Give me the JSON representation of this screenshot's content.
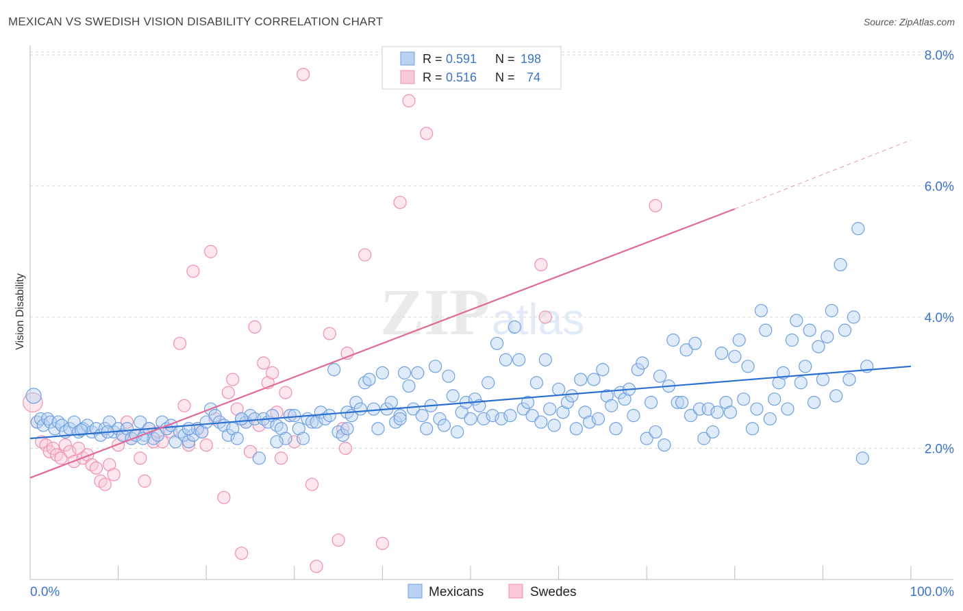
{
  "header": {
    "title": "MEXICAN VS SWEDISH VISION DISABILITY CORRELATION CHART",
    "source": "Source: ZipAtlas.com"
  },
  "legend_box": {
    "rows": [
      {
        "r_label": "R =",
        "r_value": "0.591",
        "n_label": "N =",
        "n_value": "198"
      },
      {
        "r_label": "R =",
        "r_value": "0.516",
        "n_label": "N =",
        "n_value": "74"
      }
    ]
  },
  "watermark": {
    "zip": "ZIP",
    "atlas": "atlas"
  },
  "colors": {
    "mexicans": "#6fa0e0",
    "mexicans_fill": "#b9d2f2",
    "mexicans_line": "#2b6fd0",
    "swedes": "#ef8fae",
    "swedes_fill": "#f9c9d8",
    "swedes_line": "#e06a94",
    "value_text": "#3a73c8",
    "axis_label": "#3a73c8"
  },
  "chart_data": {
    "type": "scatter",
    "title": "MEXICAN VS SWEDISH VISION DISABILITY CORRELATION CHART",
    "xlabel": "",
    "ylabel": "Vision Disability",
    "xlim": [
      0,
      100
    ],
    "ylim": [
      0,
      8.4
    ],
    "x_tick_labels": [
      "0.0%",
      "100.0%"
    ],
    "y_ticks": [
      2,
      4,
      6,
      8
    ],
    "y_tick_labels": [
      "2.0%",
      "4.0%",
      "6.0%",
      "8.0%"
    ],
    "grid": true,
    "legend_position": "bottom-center",
    "series": [
      {
        "name": "Mexicans",
        "r": 0.591,
        "n": 198,
        "trend": {
          "x0": 0,
          "y0": 2.15,
          "x1": 100,
          "y1": 3.25
        },
        "points": [
          [
            0.4,
            2.8
          ],
          [
            0.8,
            2.4
          ],
          [
            1.2,
            2.45
          ],
          [
            1.5,
            2.35
          ],
          [
            2.0,
            2.45
          ],
          [
            2.3,
            2.4
          ],
          [
            2.8,
            2.3
          ],
          [
            3.2,
            2.4
          ],
          [
            3.6,
            2.35
          ],
          [
            4.0,
            2.25
          ],
          [
            4.5,
            2.3
          ],
          [
            5.0,
            2.4
          ],
          [
            5.5,
            2.25
          ],
          [
            6.0,
            2.3
          ],
          [
            6.5,
            2.35
          ],
          [
            7.0,
            2.25
          ],
          [
            7.5,
            2.3
          ],
          [
            8.0,
            2.2
          ],
          [
            8.5,
            2.3
          ],
          [
            9.0,
            2.4
          ],
          [
            9.5,
            2.25
          ],
          [
            10.0,
            2.3
          ],
          [
            10.5,
            2.2
          ],
          [
            11.0,
            2.3
          ],
          [
            11.5,
            2.15
          ],
          [
            12.0,
            2.2
          ],
          [
            12.5,
            2.4
          ],
          [
            13.0,
            2.2
          ],
          [
            13.5,
            2.3
          ],
          [
            14.0,
            2.15
          ],
          [
            14.5,
            2.2
          ],
          [
            15.0,
            2.4
          ],
          [
            15.5,
            2.3
          ],
          [
            16.0,
            2.35
          ],
          [
            16.5,
            2.1
          ],
          [
            17.0,
            2.25
          ],
          [
            17.5,
            2.2
          ],
          [
            18.0,
            2.1
          ],
          [
            18.5,
            2.2
          ],
          [
            19.0,
            2.3
          ],
          [
            19.5,
            2.25
          ],
          [
            20.0,
            2.4
          ],
          [
            20.5,
            2.6
          ],
          [
            21.0,
            2.5
          ],
          [
            21.5,
            2.4
          ],
          [
            22.0,
            2.35
          ],
          [
            22.5,
            2.2
          ],
          [
            23.0,
            2.3
          ],
          [
            23.5,
            2.15
          ],
          [
            24.0,
            2.45
          ],
          [
            24.5,
            2.4
          ],
          [
            25.0,
            2.5
          ],
          [
            25.5,
            2.45
          ],
          [
            26.0,
            1.85
          ],
          [
            26.5,
            2.45
          ],
          [
            27.0,
            2.4
          ],
          [
            27.5,
            2.5
          ],
          [
            28.0,
            2.35
          ],
          [
            28.5,
            2.3
          ],
          [
            29.0,
            2.15
          ],
          [
            29.5,
            2.5
          ],
          [
            30.0,
            2.5
          ],
          [
            30.5,
            2.3
          ],
          [
            31.0,
            2.15
          ],
          [
            31.5,
            2.45
          ],
          [
            32.0,
            2.4
          ],
          [
            32.5,
            2.4
          ],
          [
            33.0,
            2.55
          ],
          [
            33.5,
            2.45
          ],
          [
            34.0,
            2.5
          ],
          [
            34.5,
            3.2
          ],
          [
            35.0,
            2.25
          ],
          [
            35.5,
            2.2
          ],
          [
            36.0,
            2.55
          ],
          [
            36.5,
            2.5
          ],
          [
            37.0,
            2.7
          ],
          [
            37.5,
            2.6
          ],
          [
            38.0,
            3.0
          ],
          [
            38.5,
            3.05
          ],
          [
            39.0,
            2.6
          ],
          [
            39.5,
            2.3
          ],
          [
            40.0,
            3.15
          ],
          [
            40.5,
            2.6
          ],
          [
            41.0,
            2.7
          ],
          [
            41.5,
            2.4
          ],
          [
            42.0,
            2.5
          ],
          [
            42.5,
            3.15
          ],
          [
            43.0,
            2.95
          ],
          [
            43.5,
            2.6
          ],
          [
            44.0,
            3.15
          ],
          [
            44.5,
            2.5
          ],
          [
            45.0,
            2.3
          ],
          [
            45.5,
            2.65
          ],
          [
            46.0,
            3.25
          ],
          [
            46.5,
            2.45
          ],
          [
            47.0,
            2.35
          ],
          [
            47.5,
            3.1
          ],
          [
            48.0,
            2.8
          ],
          [
            48.5,
            2.25
          ],
          [
            49.0,
            2.55
          ],
          [
            49.5,
            2.7
          ],
          [
            50.0,
            2.45
          ],
          [
            50.5,
            2.75
          ],
          [
            51.0,
            2.65
          ],
          [
            51.5,
            2.45
          ],
          [
            52.0,
            3.0
          ],
          [
            52.5,
            2.5
          ],
          [
            53.0,
            3.6
          ],
          [
            53.5,
            2.45
          ],
          [
            54.0,
            3.35
          ],
          [
            54.5,
            2.5
          ],
          [
            55.0,
            3.85
          ],
          [
            55.5,
            3.35
          ],
          [
            56.0,
            2.6
          ],
          [
            56.5,
            2.7
          ],
          [
            57.0,
            2.5
          ],
          [
            57.5,
            3.0
          ],
          [
            58.0,
            2.4
          ],
          [
            58.5,
            3.35
          ],
          [
            59.0,
            2.6
          ],
          [
            59.5,
            2.35
          ],
          [
            60.0,
            2.9
          ],
          [
            60.5,
            2.55
          ],
          [
            61.0,
            2.7
          ],
          [
            61.5,
            2.8
          ],
          [
            62.0,
            2.3
          ],
          [
            62.5,
            3.05
          ],
          [
            63.0,
            2.55
          ],
          [
            63.5,
            2.4
          ],
          [
            64.0,
            3.05
          ],
          [
            64.5,
            2.45
          ],
          [
            65.0,
            3.2
          ],
          [
            65.5,
            2.8
          ],
          [
            66.0,
            2.65
          ],
          [
            66.5,
            2.3
          ],
          [
            67.0,
            2.85
          ],
          [
            67.5,
            2.75
          ],
          [
            68.0,
            2.9
          ],
          [
            68.5,
            2.5
          ],
          [
            69.0,
            3.2
          ],
          [
            69.5,
            3.3
          ],
          [
            70.0,
            2.15
          ],
          [
            70.5,
            2.7
          ],
          [
            71.0,
            2.25
          ],
          [
            71.5,
            3.1
          ],
          [
            72.0,
            2.05
          ],
          [
            72.5,
            2.95
          ],
          [
            73.0,
            3.65
          ],
          [
            73.5,
            2.7
          ],
          [
            74.0,
            2.7
          ],
          [
            74.5,
            3.5
          ],
          [
            75.0,
            2.5
          ],
          [
            75.5,
            3.6
          ],
          [
            76.0,
            2.6
          ],
          [
            76.5,
            2.15
          ],
          [
            77.0,
            2.6
          ],
          [
            77.5,
            2.25
          ],
          [
            78.0,
            2.55
          ],
          [
            78.5,
            3.45
          ],
          [
            79.0,
            2.7
          ],
          [
            79.5,
            2.55
          ],
          [
            80.0,
            3.4
          ],
          [
            80.5,
            3.65
          ],
          [
            81.0,
            2.75
          ],
          [
            81.5,
            3.25
          ],
          [
            82.0,
            2.3
          ],
          [
            82.5,
            2.6
          ],
          [
            83.0,
            4.1
          ],
          [
            83.5,
            3.8
          ],
          [
            84.0,
            2.45
          ],
          [
            84.5,
            2.75
          ],
          [
            85.0,
            3.0
          ],
          [
            85.5,
            3.15
          ],
          [
            86.0,
            2.6
          ],
          [
            86.5,
            3.65
          ],
          [
            87.0,
            3.95
          ],
          [
            87.5,
            3.0
          ],
          [
            88.0,
            3.25
          ],
          [
            88.5,
            3.8
          ],
          [
            89.0,
            2.7
          ],
          [
            89.5,
            3.55
          ],
          [
            90.0,
            3.05
          ],
          [
            90.5,
            3.7
          ],
          [
            91.0,
            4.1
          ],
          [
            91.5,
            2.8
          ],
          [
            92.0,
            4.8
          ],
          [
            92.5,
            3.8
          ],
          [
            93.0,
            3.05
          ],
          [
            93.5,
            4.0
          ],
          [
            94.0,
            5.35
          ],
          [
            94.5,
            1.85
          ],
          [
            95.0,
            3.25
          ],
          [
            42.0,
            2.45
          ],
          [
            24.0,
            2.45
          ],
          [
            18.0,
            2.3
          ],
          [
            36.0,
            2.3
          ],
          [
            28.0,
            2.1
          ],
          [
            12.8,
            2.15
          ],
          [
            8.8,
            2.25
          ],
          [
            5.8,
            2.28
          ]
        ]
      },
      {
        "name": "Swedes",
        "r": 0.516,
        "n": 74,
        "trend": {
          "x0": 0,
          "y0": 1.55,
          "x1": 80,
          "y1": 5.65,
          "dash_to_x": 100,
          "dash_to_y": 6.7
        },
        "points": [
          [
            0.3,
            2.7
          ],
          [
            0.8,
            2.4
          ],
          [
            1.3,
            2.1
          ],
          [
            1.8,
            2.05
          ],
          [
            2.2,
            1.95
          ],
          [
            2.6,
            2.0
          ],
          [
            3.0,
            1.9
          ],
          [
            3.5,
            1.85
          ],
          [
            4.0,
            2.05
          ],
          [
            4.5,
            1.95
          ],
          [
            5.0,
            1.8
          ],
          [
            5.5,
            2.0
          ],
          [
            6.0,
            1.85
          ],
          [
            6.5,
            1.9
          ],
          [
            7.0,
            1.75
          ],
          [
            7.5,
            1.7
          ],
          [
            8.0,
            1.5
          ],
          [
            8.5,
            1.45
          ],
          [
            9.0,
            1.75
          ],
          [
            9.5,
            1.6
          ],
          [
            10.0,
            2.05
          ],
          [
            10.5,
            2.2
          ],
          [
            11.0,
            2.4
          ],
          [
            11.5,
            2.15
          ],
          [
            12.0,
            2.2
          ],
          [
            12.5,
            1.85
          ],
          [
            13.0,
            1.5
          ],
          [
            13.5,
            2.3
          ],
          [
            14.0,
            2.1
          ],
          [
            14.5,
            2.25
          ],
          [
            15.0,
            2.1
          ],
          [
            16.0,
            2.25
          ],
          [
            17.0,
            3.6
          ],
          [
            17.5,
            2.65
          ],
          [
            18.0,
            2.05
          ],
          [
            18.5,
            4.7
          ],
          [
            19.0,
            2.3
          ],
          [
            19.5,
            2.25
          ],
          [
            20.0,
            2.05
          ],
          [
            20.5,
            5.0
          ],
          [
            21.0,
            2.45
          ],
          [
            22.0,
            1.25
          ],
          [
            22.5,
            2.85
          ],
          [
            23.0,
            3.05
          ],
          [
            23.5,
            2.6
          ],
          [
            24.0,
            0.4
          ],
          [
            24.5,
            2.4
          ],
          [
            25.0,
            1.95
          ],
          [
            25.5,
            3.85
          ],
          [
            26.0,
            2.35
          ],
          [
            26.5,
            3.3
          ],
          [
            27.0,
            3.0
          ],
          [
            27.5,
            3.15
          ],
          [
            28.0,
            2.55
          ],
          [
            28.5,
            1.85
          ],
          [
            29.0,
            2.85
          ],
          [
            29.5,
            2.5
          ],
          [
            30.0,
            2.1
          ],
          [
            31.0,
            7.7
          ],
          [
            32.0,
            1.45
          ],
          [
            32.5,
            0.2
          ],
          [
            34.0,
            3.75
          ],
          [
            35.0,
            0.6
          ],
          [
            35.5,
            2.3
          ],
          [
            35.8,
            2.0
          ],
          [
            36.0,
            3.45
          ],
          [
            38.0,
            4.95
          ],
          [
            40.0,
            0.55
          ],
          [
            42.0,
            5.75
          ],
          [
            43.0,
            7.3
          ],
          [
            45.0,
            6.8
          ],
          [
            58.0,
            4.8
          ],
          [
            58.5,
            4.0
          ],
          [
            71.0,
            5.7
          ]
        ]
      }
    ]
  },
  "bottom_legend": {
    "items": [
      {
        "label": "Mexicans"
      },
      {
        "label": "Swedes"
      }
    ]
  }
}
